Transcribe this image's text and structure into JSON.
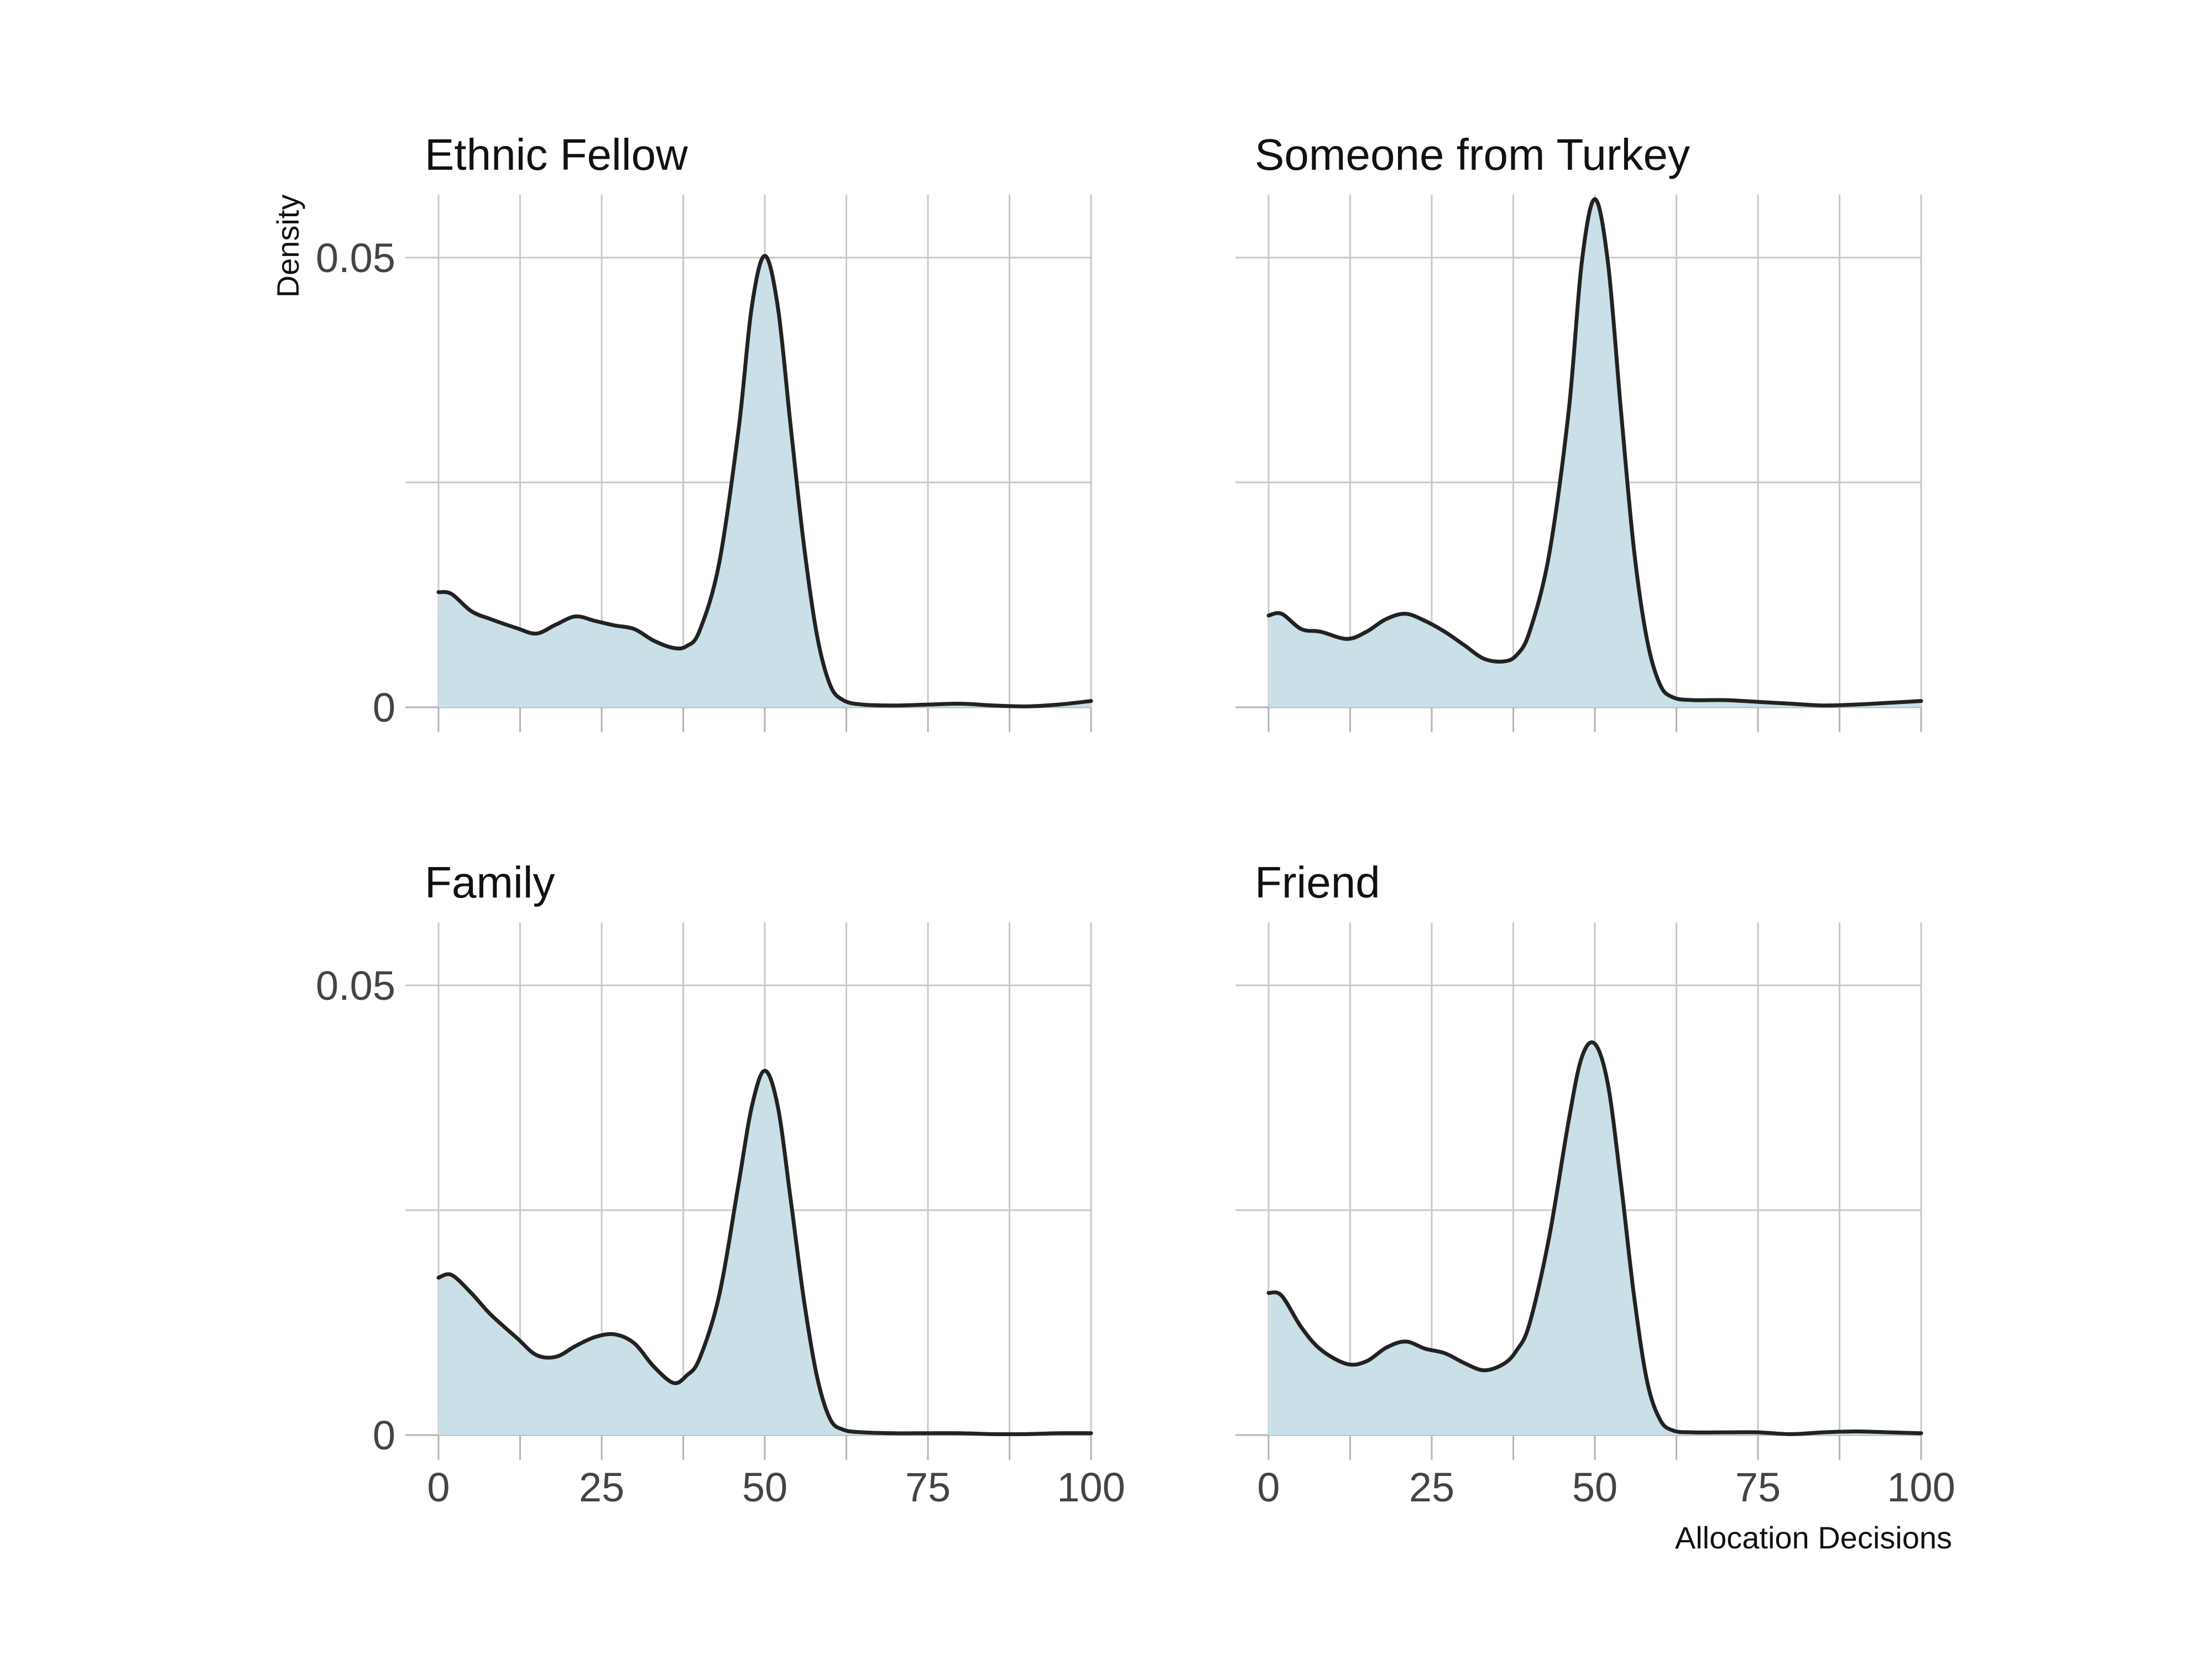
{
  "chart_data": {
    "type": "area",
    "title": "",
    "xlabel": "Allocation Decisions",
    "ylabel": "Density",
    "xlim": [
      0,
      100
    ],
    "ylim": [
      0,
      0.057
    ],
    "x_ticks": [
      0,
      25,
      50,
      75,
      100
    ],
    "x_tick_labels": [
      "0",
      "25",
      "50",
      "75",
      "100"
    ],
    "y_ticks": [
      0,
      0.05
    ],
    "y_tick_labels": [
      "0",
      "0.05"
    ],
    "grid": true,
    "legend": "none",
    "fill_color": "#cadfe7",
    "line_color": "#222222",
    "grid_color": "#c9c9c9",
    "panels": [
      {
        "title": "Ethnic Fellow",
        "x": [
          0,
          2,
          5,
          8,
          12,
          15,
          18,
          21,
          24,
          27,
          30,
          33,
          36,
          38,
          40,
          43,
          46,
          48,
          50,
          52,
          54,
          56,
          58,
          60,
          62,
          65,
          70,
          75,
          80,
          85,
          90,
          95,
          100
        ],
        "y": [
          0.0128,
          0.0126,
          0.0107,
          0.0098,
          0.0088,
          0.0082,
          0.0092,
          0.0101,
          0.0096,
          0.0091,
          0.0087,
          0.0074,
          0.0066,
          0.0068,
          0.0085,
          0.016,
          0.031,
          0.0445,
          0.0502,
          0.0445,
          0.031,
          0.018,
          0.008,
          0.0025,
          0.0008,
          0.0003,
          0.0002,
          0.0003,
          0.0004,
          0.0002,
          0.0001,
          0.0003,
          0.0007
        ]
      },
      {
        "title": "Someone from Turkey",
        "x": [
          0,
          2,
          5,
          8,
          12,
          15,
          18,
          21,
          24,
          27,
          30,
          33,
          36,
          38,
          40,
          43,
          46,
          48,
          50,
          52,
          54,
          56,
          58,
          60,
          62,
          65,
          70,
          75,
          80,
          85,
          90,
          95,
          100
        ],
        "y": [
          0.0102,
          0.0104,
          0.0087,
          0.0084,
          0.0076,
          0.0084,
          0.0098,
          0.0104,
          0.0096,
          0.0084,
          0.0069,
          0.0054,
          0.0051,
          0.0058,
          0.0084,
          0.017,
          0.033,
          0.0495,
          0.0565,
          0.0495,
          0.033,
          0.0175,
          0.0075,
          0.0025,
          0.0011,
          0.0008,
          0.0008,
          0.0006,
          0.0004,
          0.0002,
          0.0003,
          0.0005,
          0.0007
        ]
      },
      {
        "title": "Family",
        "x": [
          0,
          2,
          5,
          8,
          12,
          15,
          18,
          21,
          24,
          27,
          30,
          33,
          36,
          38,
          40,
          43,
          46,
          48,
          50,
          52,
          54,
          56,
          58,
          60,
          62,
          65,
          70,
          75,
          80,
          85,
          90,
          95,
          100
        ],
        "y": [
          0.0175,
          0.0178,
          0.0158,
          0.0134,
          0.0108,
          0.0089,
          0.0087,
          0.0099,
          0.0109,
          0.0112,
          0.0102,
          0.0076,
          0.0058,
          0.0066,
          0.0085,
          0.0155,
          0.028,
          0.0365,
          0.0405,
          0.0365,
          0.026,
          0.015,
          0.0065,
          0.0018,
          0.0006,
          0.0003,
          0.0002,
          0.0002,
          0.0002,
          0.0001,
          0.0001,
          0.0002,
          0.0002
        ]
      },
      {
        "title": "Friend",
        "x": [
          0,
          2,
          5,
          8,
          12,
          15,
          18,
          21,
          24,
          27,
          30,
          33,
          36,
          38,
          40,
          43,
          46,
          48,
          50,
          52,
          54,
          56,
          58,
          60,
          62,
          65,
          70,
          75,
          80,
          85,
          90,
          95,
          100
        ],
        "y": [
          0.0158,
          0.0155,
          0.012,
          0.0095,
          0.0079,
          0.0082,
          0.0097,
          0.0104,
          0.0096,
          0.0091,
          0.008,
          0.0072,
          0.0079,
          0.0094,
          0.0124,
          0.022,
          0.035,
          0.042,
          0.0435,
          0.039,
          0.028,
          0.0155,
          0.006,
          0.0017,
          0.0005,
          0.0003,
          0.0003,
          0.0003,
          0.0001,
          0.0003,
          0.0004,
          0.0003,
          0.0002
        ]
      }
    ]
  }
}
